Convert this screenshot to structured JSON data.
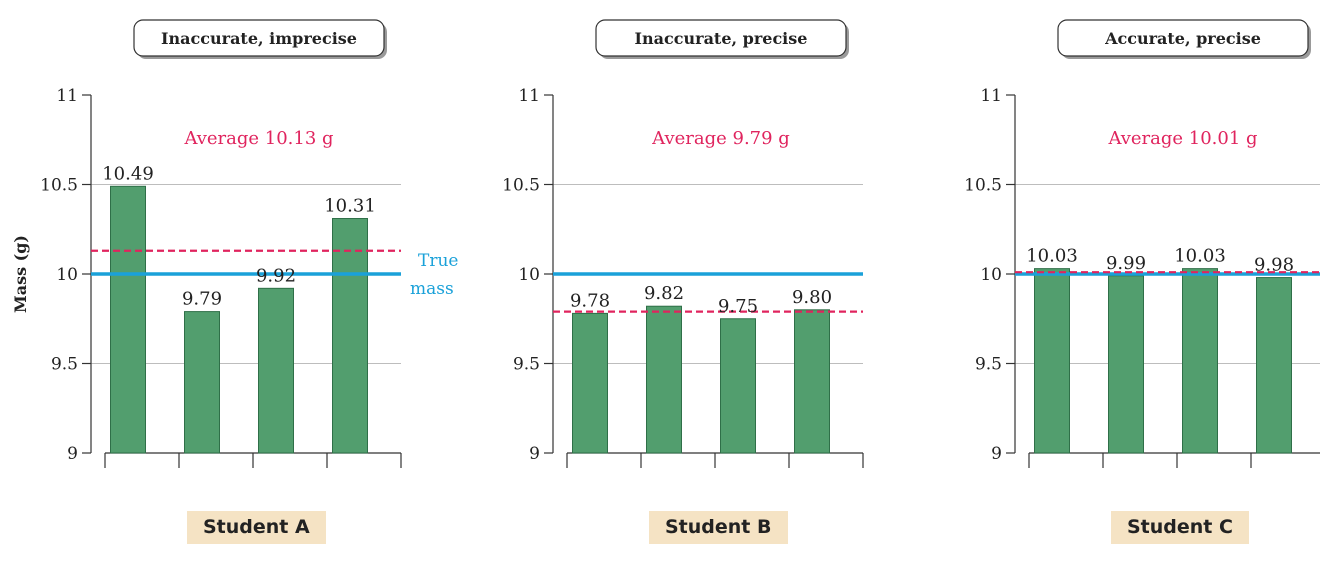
{
  "colors": {
    "bar_fill": "#529e6e",
    "bar_stroke": "#2f6f48",
    "true_line": "#1aa1d9",
    "average_line": "#e0245e",
    "average_text": "#e0245e",
    "grid": "#bdbdbd",
    "axis": "#333333",
    "label_box_fill": "#f5e3c4"
  },
  "y_axis": {
    "label": "Mass (g)",
    "ticks": [
      "9",
      "9.5",
      "10",
      "10.5",
      "11"
    ],
    "range": [
      9,
      11
    ]
  },
  "true_mass": {
    "value": 10,
    "label_lines": [
      "True",
      "mass"
    ]
  },
  "chart_data": [
    {
      "type": "bar",
      "title": "Inaccurate, imprecise",
      "student": "Student A",
      "average": 10.13,
      "average_label": "Average 10.13 g",
      "true_mass": 10,
      "ylim": [
        9,
        11
      ],
      "values": [
        10.49,
        9.79,
        9.92,
        10.31
      ],
      "value_labels": [
        "10.49",
        "9.79",
        "9.92",
        "10.31"
      ]
    },
    {
      "type": "bar",
      "title": "Inaccurate, precise",
      "student": "Student B",
      "average": 9.79,
      "average_label": "Average 9.79 g",
      "true_mass": 10,
      "ylim": [
        9,
        11
      ],
      "values": [
        9.78,
        9.82,
        9.75,
        9.8
      ],
      "value_labels": [
        "9.78",
        "9.82",
        "9.75",
        "9.80"
      ]
    },
    {
      "type": "bar",
      "title": "Accurate, precise",
      "student": "Student C",
      "average": 10.01,
      "average_label": "Average 10.01 g",
      "true_mass": 10,
      "ylim": [
        9,
        11
      ],
      "values": [
        10.03,
        9.99,
        10.03,
        9.98
      ],
      "value_labels": [
        "10.03",
        "9.99",
        "10.03",
        "9.98"
      ]
    }
  ]
}
